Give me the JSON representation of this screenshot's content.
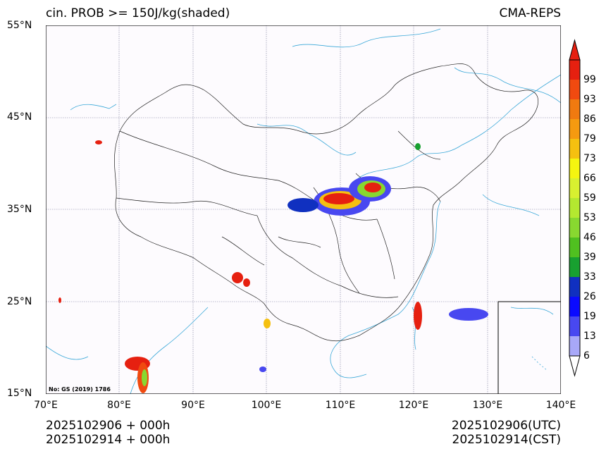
{
  "title_left": "cin. PROB >= 150J/kg(shaded)",
  "title_right": "CMA-REPS",
  "lat_labels": [
    "55°N",
    "45°N",
    "35°N",
    "25°N",
    "15°N"
  ],
  "lon_labels": [
    "70°E",
    "80°E",
    "90°E",
    "100°E",
    "110°E",
    "120°E",
    "130°E",
    "140°E"
  ],
  "colorbar": {
    "labels": [
      "99",
      "93",
      "86",
      "79",
      "73",
      "66",
      "59",
      "53",
      "46",
      "39",
      "33",
      "26",
      "19",
      "13",
      "6"
    ],
    "colors": [
      "#e62010",
      "#f04a10",
      "#f07a10",
      "#f59a10",
      "#f5c010",
      "#f5f510",
      "#d8f030",
      "#b4e830",
      "#88d830",
      "#50c020",
      "#18a030",
      "#1030c0",
      "#0a0aff",
      "#4848f0",
      "#a8a8f8"
    ]
  },
  "footer_left": [
    "2025102906  +  000h",
    "2025102914  +  000h"
  ],
  "footer_right": [
    "2025102906(UTC)",
    "2025102914(CST)"
  ],
  "map_note": "No: GS (2019) 1786"
}
